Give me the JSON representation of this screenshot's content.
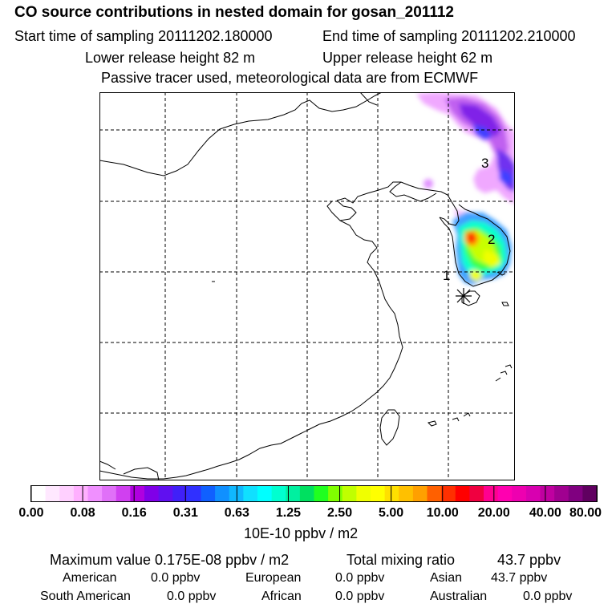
{
  "header": {
    "title": "CO  source contributions in nested domain for gosan_201112",
    "start_label": "Start time of sampling 20111202.180000",
    "end_label": "End time of sampling 20111202.210000",
    "lower_label": "Lower release height   82 m",
    "upper_label": "Upper release height   62 m",
    "tracer_note": "Passive tracer used, meteorological data are from ECMWF"
  },
  "map": {
    "markers": [
      {
        "label": "1"
      },
      {
        "label": "2"
      },
      {
        "label": "3"
      }
    ],
    "receptor": "asterisk-marker"
  },
  "colorbar": {
    "ticks": [
      "0.00",
      "0.08",
      "0.16",
      "0.31",
      "0.63",
      "1.25",
      "2.50",
      "5.00",
      "10.00",
      "20.00",
      "40.00",
      "80.00"
    ],
    "unit": "10E-10 ppbv / m2",
    "colors": [
      "#ffffff",
      "#ffe8ff",
      "#ffd0ff",
      "#ffb0ff",
      "#f090ff",
      "#e070f8",
      "#d040f0",
      "#b000e0",
      "#8000e8",
      "#6010f0",
      "#4020f8",
      "#3030ff",
      "#1060ff",
      "#1090ff",
      "#10b8ff",
      "#10e0ff",
      "#00ffff",
      "#00ffd0",
      "#00f0a0",
      "#00e060",
      "#20ff20",
      "#80ff00",
      "#c0ff00",
      "#f0ff00",
      "#ffff00",
      "#ffe000",
      "#ffc000",
      "#ffa000",
      "#ff6000",
      "#ff3000",
      "#ff0000",
      "#f00040",
      "#ff0090",
      "#ff00b0",
      "#ee00b0",
      "#d800b0",
      "#c000a0",
      "#a00090",
      "#800080",
      "#600060"
    ]
  },
  "stats": {
    "max_label": "Maximum value  0.175E-08 ppbv / m2",
    "total_label": "Total mixing ratio",
    "total_value": "43.7 ppbv",
    "regions": [
      {
        "name": "American",
        "value": "0.0 ppbv"
      },
      {
        "name": "European",
        "value": "0.0 ppbv"
      },
      {
        "name": "Asian",
        "value": "43.7 ppbv"
      },
      {
        "name": "South American",
        "value": "0.0 ppbv"
      },
      {
        "name": "African",
        "value": "0.0 ppbv"
      },
      {
        "name": "Australian",
        "value": "0.0 ppbv"
      }
    ]
  }
}
